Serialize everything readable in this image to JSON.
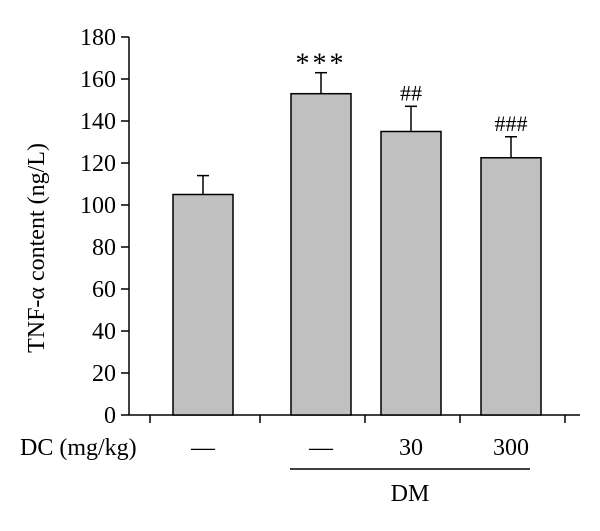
{
  "chart_data": {
    "type": "bar",
    "ylabel": "TNF-α content (ng/L)",
    "ylim": [
      0,
      180
    ],
    "yticks": [
      0,
      20,
      40,
      60,
      80,
      100,
      120,
      140,
      160,
      180
    ],
    "grid": false,
    "legend": "none",
    "bar_color": "#c0c0c0",
    "categories": [
      "—",
      "—",
      "30",
      "300"
    ],
    "values": [
      105,
      153,
      135,
      122.5
    ],
    "errors": [
      9,
      10,
      12,
      10
    ],
    "significance": [
      "",
      "***",
      "##",
      "###"
    ],
    "row_label": "DC (mg/kg)",
    "group_label": "DM"
  }
}
